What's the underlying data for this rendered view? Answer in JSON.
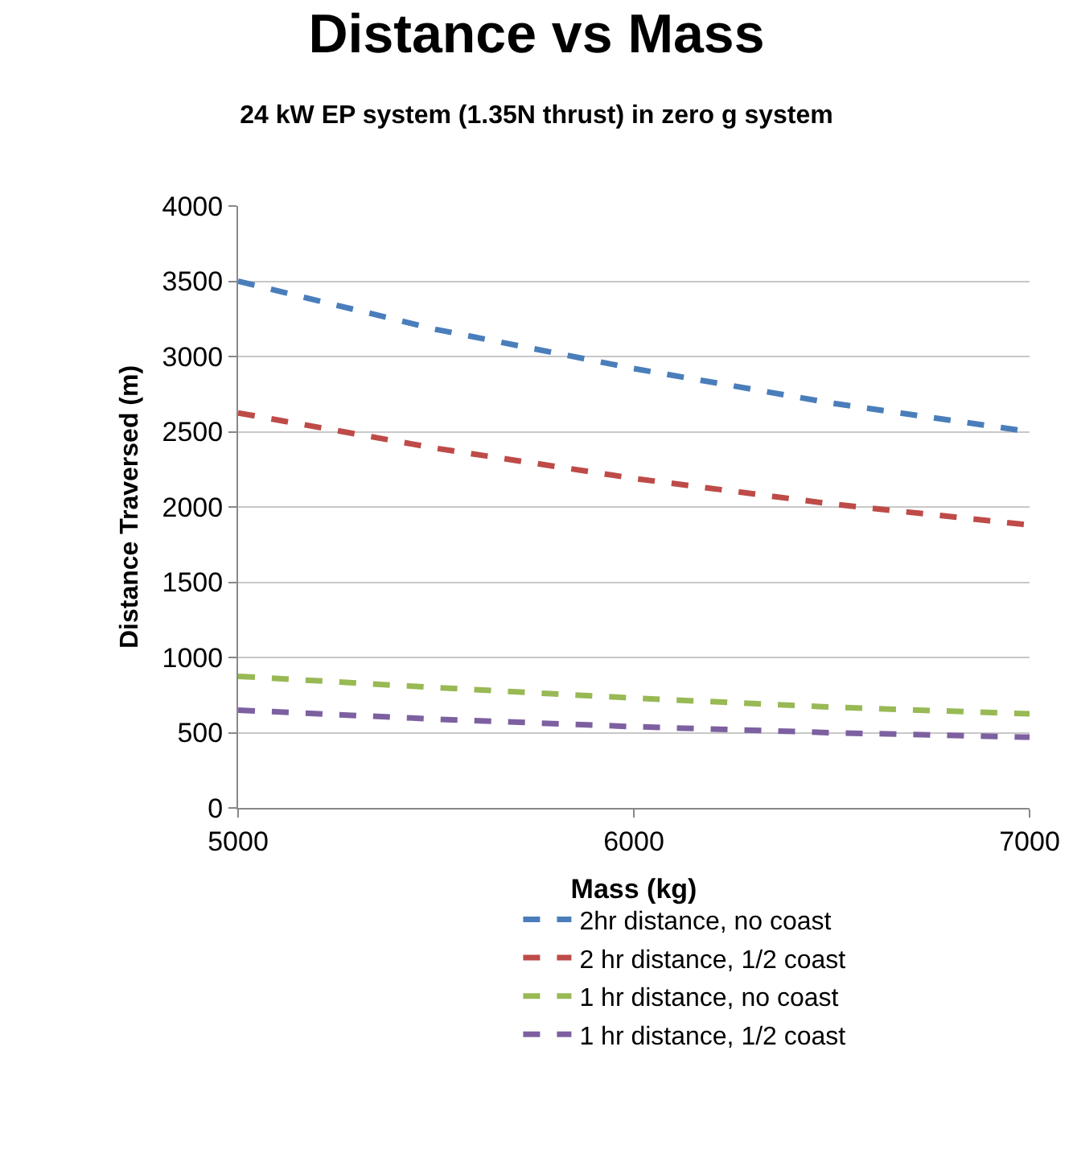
{
  "chart_data": {
    "type": "line",
    "title": "Distance vs Mass",
    "subtitle": "24 kW EP system (1.35N thrust) in zero g system",
    "xlabel": "Mass (kg)",
    "ylabel": "Distance Traversed (m)",
    "x": [
      5000,
      5500,
      6000,
      6500,
      7000
    ],
    "series": [
      {
        "name": "2hr distance, no coast",
        "color": "#4a7ebb",
        "line_style": "dashed",
        "values": [
          3500,
          3180,
          2920,
          2690,
          2500
        ]
      },
      {
        "name": "2 hr distance, 1/2 coast",
        "color": "#be4b48",
        "line_style": "dashed",
        "values": [
          2625,
          2390,
          2190,
          2020,
          1880
        ]
      },
      {
        "name": "1 hr distance, no coast",
        "color": "#98b954",
        "line_style": "dashed",
        "values": [
          875,
          800,
          730,
          670,
          625
        ]
      },
      {
        "name": "1 hr distance, 1/2 coast",
        "color": "#7d60a0",
        "line_style": "dashed",
        "values": [
          650,
          590,
          540,
          500,
          470
        ]
      }
    ],
    "xlim": [
      5000,
      7000
    ],
    "xticks": [
      5000,
      6000,
      7000
    ],
    "ylim": [
      0,
      4000
    ],
    "yticks": [
      0,
      500,
      1000,
      1500,
      2000,
      2500,
      3000,
      3500,
      4000
    ],
    "grid": "y",
    "legend": "bottom",
    "marker": "none"
  }
}
